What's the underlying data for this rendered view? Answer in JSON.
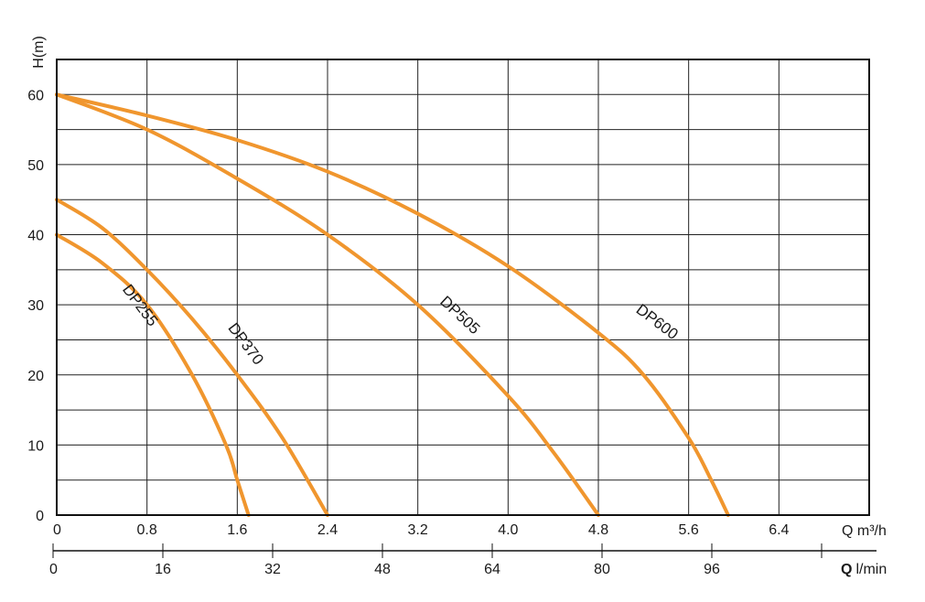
{
  "chart_data": {
    "type": "line",
    "ylabel": "H(m)",
    "xlabel": "Q m³/h",
    "x2label_prefix": "Q",
    "x2label_unit": "l/min",
    "xlim": [
      0,
      7.2
    ],
    "ylim": [
      0,
      65
    ],
    "x_ticks": [
      0,
      0.8,
      1.6,
      2.4,
      3.2,
      4.0,
      4.8,
      5.6,
      6.4
    ],
    "x_tick_labels": [
      "0",
      "0.8",
      "1.6",
      "2.4",
      "3.2",
      "4.0",
      "4.8",
      "5.6",
      "6.4"
    ],
    "y_ticks": [
      0,
      10,
      20,
      30,
      40,
      50,
      60
    ],
    "y_tick_labels": [
      "0",
      "10",
      "20",
      "30",
      "40",
      "50",
      "60"
    ],
    "x2_ticks": [
      0,
      16,
      32,
      48,
      64,
      80,
      96
    ],
    "x2_tick_labels": [
      "0",
      "16",
      "32",
      "48",
      "64",
      "80",
      "96"
    ],
    "x2lim": [
      0,
      120
    ],
    "grid": true,
    "curve_color": "#f0962e",
    "series": [
      {
        "name": "DP255",
        "x": [
          0,
          0.4,
          0.8,
          1.2,
          1.5,
          1.6,
          1.7
        ],
        "y": [
          40,
          36,
          30,
          20,
          10,
          5,
          0
        ]
      },
      {
        "name": "DP370",
        "x": [
          0,
          0.4,
          0.8,
          1.2,
          1.6,
          2.0,
          2.4
        ],
        "y": [
          45,
          41,
          35,
          28,
          20,
          11,
          0
        ]
      },
      {
        "name": "DP505",
        "x": [
          0,
          0.8,
          1.6,
          2.4,
          3.2,
          4.0,
          4.4,
          4.8
        ],
        "y": [
          60,
          55,
          48,
          40,
          30,
          17,
          9,
          0
        ]
      },
      {
        "name": "DP600",
        "x": [
          0,
          0.8,
          1.6,
          2.4,
          3.2,
          4.0,
          4.8,
          5.2,
          5.6,
          5.8,
          5.95
        ],
        "y": [
          60,
          57,
          53.5,
          49,
          43,
          35.5,
          26,
          20,
          11,
          5,
          0
        ]
      }
    ]
  }
}
